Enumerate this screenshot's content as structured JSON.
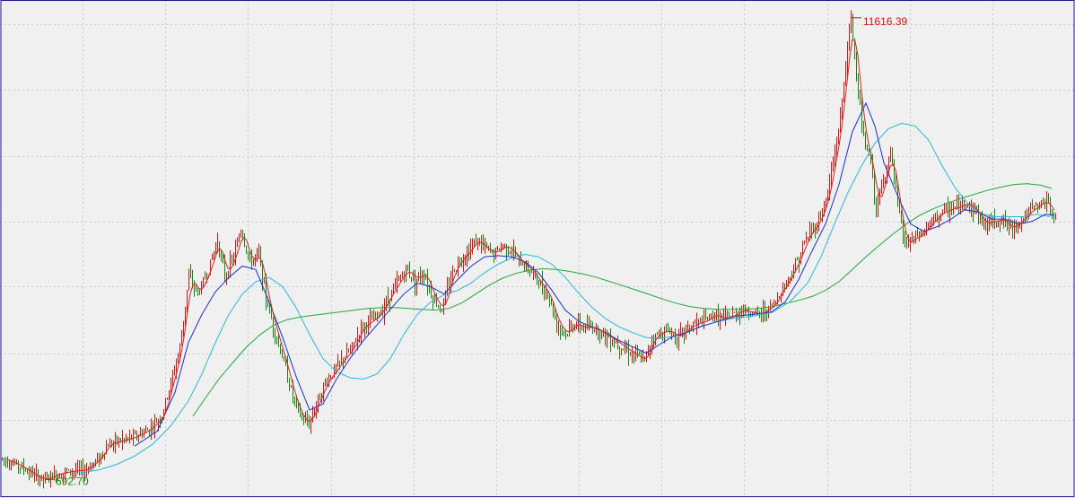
{
  "chart_data": {
    "type": "line",
    "subtype": "candlestick-with-moving-averages",
    "title": "",
    "xlabel": "",
    "ylabel": "",
    "grid": true,
    "y_scale": "log",
    "ylim": [
      640,
      12600
    ],
    "y_grid_values": [
      1000,
      1500,
      2250,
      3350,
      5000,
      7500,
      11200
    ],
    "x_grid_count": 13,
    "colors": {
      "background": "#f0f0f0",
      "up_candle": "#dd1111",
      "down_candle": "#118811",
      "ma_short": "#dd2222",
      "ma_mid": "#1a2fcc",
      "ma_long": "#27b8d6",
      "ma_longest": "#22a53a",
      "high_label": "#cc1111",
      "low_label": "#118811",
      "grid": "#c9c9c9",
      "axis": "#1c1c8a"
    },
    "price_path": [
      [
        0,
        790
      ],
      [
        10,
        775
      ],
      [
        25,
        745
      ],
      [
        40,
        705
      ],
      [
        50,
        692.7
      ],
      [
        65,
        720
      ],
      [
        80,
        730
      ],
      [
        95,
        735
      ],
      [
        110,
        790
      ],
      [
        120,
        860
      ],
      [
        135,
        880
      ],
      [
        150,
        900
      ],
      [
        165,
        940
      ],
      [
        180,
        1020
      ],
      [
        190,
        1250
      ],
      [
        200,
        1550
      ],
      [
        210,
        2400
      ],
      [
        220,
        2150
      ],
      [
        232,
        2500
      ],
      [
        242,
        3000
      ],
      [
        250,
        2400
      ],
      [
        260,
        2700
      ],
      [
        268,
        3200
      ],
      [
        278,
        2600
      ],
      [
        288,
        2750
      ],
      [
        296,
        2100
      ],
      [
        306,
        1700
      ],
      [
        316,
        1420
      ],
      [
        326,
        1150
      ],
      [
        336,
        1000
      ],
      [
        344,
        980
      ],
      [
        352,
        1100
      ],
      [
        362,
        1250
      ],
      [
        372,
        1350
      ],
      [
        382,
        1450
      ],
      [
        392,
        1550
      ],
      [
        402,
        1750
      ],
      [
        412,
        1820
      ],
      [
        422,
        1900
      ],
      [
        432,
        2100
      ],
      [
        442,
        2300
      ],
      [
        452,
        2500
      ],
      [
        462,
        2350
      ],
      [
        472,
        2450
      ],
      [
        482,
        2100
      ],
      [
        492,
        1950
      ],
      [
        502,
        2400
      ],
      [
        512,
        2650
      ],
      [
        522,
        2800
      ],
      [
        530,
        3000
      ],
      [
        540,
        2850
      ],
      [
        550,
        2750
      ],
      [
        560,
        2900
      ],
      [
        570,
        2800
      ],
      [
        580,
        2600
      ],
      [
        590,
        2500
      ],
      [
        600,
        2300
      ],
      [
        610,
        2150
      ],
      [
        620,
        1800
      ],
      [
        630,
        1680
      ],
      [
        640,
        1800
      ],
      [
        650,
        1750
      ],
      [
        660,
        1760
      ],
      [
        670,
        1700
      ],
      [
        680,
        1640
      ],
      [
        690,
        1580
      ],
      [
        700,
        1520
      ],
      [
        710,
        1470
      ],
      [
        718,
        1430
      ],
      [
        725,
        1620
      ],
      [
        735,
        1700
      ],
      [
        745,
        1720
      ],
      [
        755,
        1650
      ],
      [
        765,
        1740
      ],
      [
        775,
        1800
      ],
      [
        785,
        1820
      ],
      [
        795,
        1900
      ],
      [
        805,
        1850
      ],
      [
        815,
        1880
      ],
      [
        825,
        1950
      ],
      [
        835,
        1930
      ],
      [
        845,
        1900
      ],
      [
        855,
        1960
      ],
      [
        862,
        2020
      ],
      [
        870,
        2200
      ],
      [
        880,
        2400
      ],
      [
        890,
        2700
      ],
      [
        900,
        3100
      ],
      [
        910,
        3300
      ],
      [
        920,
        3800
      ],
      [
        928,
        4800
      ],
      [
        936,
        6300
      ],
      [
        942,
        8800
      ],
      [
        948,
        11616.39
      ],
      [
        954,
        8200
      ],
      [
        962,
        5500
      ],
      [
        970,
        4800
      ],
      [
        976,
        3600
      ],
      [
        984,
        4300
      ],
      [
        992,
        5100
      ],
      [
        1000,
        3700
      ],
      [
        1008,
        2900
      ],
      [
        1016,
        3000
      ],
      [
        1026,
        3100
      ],
      [
        1036,
        3300
      ],
      [
        1046,
        3500
      ],
      [
        1056,
        3600
      ],
      [
        1066,
        3650
      ],
      [
        1076,
        3750
      ],
      [
        1086,
        3600
      ],
      [
        1096,
        3300
      ],
      [
        1106,
        3350
      ],
      [
        1116,
        3400
      ],
      [
        1126,
        3200
      ],
      [
        1136,
        3350
      ],
      [
        1146,
        3550
      ],
      [
        1156,
        3700
      ],
      [
        1166,
        3800
      ],
      [
        1174,
        3450
      ]
    ],
    "moving_averages": {
      "ma_mid": [
        [
          150,
          850
        ],
        [
          175,
          930
        ],
        [
          195,
          1180
        ],
        [
          210,
          1600
        ],
        [
          225,
          1900
        ],
        [
          240,
          2180
        ],
        [
          255,
          2380
        ],
        [
          270,
          2550
        ],
        [
          285,
          2500
        ],
        [
          300,
          2050
        ],
        [
          315,
          1650
        ],
        [
          330,
          1300
        ],
        [
          345,
          1060
        ],
        [
          360,
          1100
        ],
        [
          375,
          1280
        ],
        [
          390,
          1450
        ],
        [
          405,
          1620
        ],
        [
          420,
          1780
        ],
        [
          435,
          1960
        ],
        [
          450,
          2150
        ],
        [
          465,
          2300
        ],
        [
          480,
          2250
        ],
        [
          495,
          2150
        ],
        [
          510,
          2350
        ],
        [
          525,
          2550
        ],
        [
          540,
          2700
        ],
        [
          555,
          2720
        ],
        [
          570,
          2700
        ],
        [
          585,
          2620
        ],
        [
          600,
          2450
        ],
        [
          615,
          2200
        ],
        [
          630,
          1950
        ],
        [
          645,
          1820
        ],
        [
          660,
          1760
        ],
        [
          675,
          1700
        ],
        [
          690,
          1620
        ],
        [
          705,
          1560
        ],
        [
          720,
          1500
        ],
        [
          735,
          1580
        ],
        [
          750,
          1660
        ],
        [
          765,
          1700
        ],
        [
          780,
          1760
        ],
        [
          800,
          1820
        ],
        [
          820,
          1880
        ],
        [
          840,
          1900
        ],
        [
          860,
          1930
        ],
        [
          875,
          2050
        ],
        [
          890,
          2350
        ],
        [
          905,
          2800
        ],
        [
          920,
          3300
        ],
        [
          935,
          4200
        ],
        [
          950,
          5800
        ],
        [
          965,
          6900
        ],
        [
          975,
          6000
        ],
        [
          985,
          4800
        ],
        [
          995,
          4200
        ],
        [
          1005,
          3700
        ],
        [
          1015,
          3300
        ],
        [
          1030,
          3150
        ],
        [
          1045,
          3250
        ],
        [
          1060,
          3400
        ],
        [
          1075,
          3600
        ],
        [
          1090,
          3550
        ],
        [
          1105,
          3400
        ],
        [
          1120,
          3400
        ],
        [
          1135,
          3300
        ],
        [
          1150,
          3350
        ],
        [
          1165,
          3500
        ],
        [
          1175,
          3480
        ]
      ],
      "ma_long": [
        [
          90,
          722
        ],
        [
          110,
          735
        ],
        [
          130,
          760
        ],
        [
          150,
          800
        ],
        [
          170,
          860
        ],
        [
          190,
          960
        ],
        [
          210,
          1120
        ],
        [
          225,
          1320
        ],
        [
          240,
          1600
        ],
        [
          255,
          1900
        ],
        [
          270,
          2150
        ],
        [
          285,
          2320
        ],
        [
          300,
          2380
        ],
        [
          315,
          2250
        ],
        [
          330,
          1980
        ],
        [
          345,
          1680
        ],
        [
          360,
          1450
        ],
        [
          375,
          1340
        ],
        [
          390,
          1290
        ],
        [
          405,
          1280
        ],
        [
          420,
          1320
        ],
        [
          435,
          1450
        ],
        [
          450,
          1680
        ],
        [
          465,
          1900
        ],
        [
          480,
          2050
        ],
        [
          495,
          2140
        ],
        [
          510,
          2200
        ],
        [
          525,
          2300
        ],
        [
          540,
          2450
        ],
        [
          555,
          2580
        ],
        [
          570,
          2680
        ],
        [
          585,
          2740
        ],
        [
          600,
          2700
        ],
        [
          615,
          2580
        ],
        [
          630,
          2380
        ],
        [
          645,
          2160
        ],
        [
          660,
          1980
        ],
        [
          675,
          1850
        ],
        [
          690,
          1760
        ],
        [
          705,
          1700
        ],
        [
          720,
          1650
        ],
        [
          735,
          1640
        ],
        [
          750,
          1660
        ],
        [
          765,
          1700
        ],
        [
          780,
          1760
        ],
        [
          800,
          1820
        ],
        [
          820,
          1860
        ],
        [
          840,
          1880
        ],
        [
          860,
          1920
        ],
        [
          880,
          2050
        ],
        [
          900,
          2300
        ],
        [
          915,
          2700
        ],
        [
          930,
          3300
        ],
        [
          945,
          4000
        ],
        [
          960,
          4700
        ],
        [
          975,
          5400
        ],
        [
          990,
          5900
        ],
        [
          1005,
          6100
        ],
        [
          1020,
          6000
        ],
        [
          1035,
          5500
        ],
        [
          1050,
          4700
        ],
        [
          1065,
          4100
        ],
        [
          1080,
          3700
        ],
        [
          1095,
          3500
        ],
        [
          1110,
          3450
        ],
        [
          1125,
          3450
        ],
        [
          1140,
          3450
        ],
        [
          1155,
          3500
        ],
        [
          1170,
          3450
        ]
      ],
      "ma_longest": [
        [
          215,
          1020
        ],
        [
          230,
          1150
        ],
        [
          245,
          1290
        ],
        [
          260,
          1420
        ],
        [
          275,
          1560
        ],
        [
          290,
          1680
        ],
        [
          305,
          1780
        ],
        [
          320,
          1840
        ],
        [
          335,
          1870
        ],
        [
          350,
          1890
        ],
        [
          365,
          1910
        ],
        [
          380,
          1930
        ],
        [
          395,
          1950
        ],
        [
          410,
          1970
        ],
        [
          425,
          1980
        ],
        [
          440,
          1980
        ],
        [
          455,
          1970
        ],
        [
          470,
          1960
        ],
        [
          485,
          1950
        ],
        [
          500,
          1970
        ],
        [
          515,
          2040
        ],
        [
          530,
          2150
        ],
        [
          545,
          2270
        ],
        [
          560,
          2370
        ],
        [
          575,
          2440
        ],
        [
          590,
          2490
        ],
        [
          605,
          2510
        ],
        [
          620,
          2500
        ],
        [
          635,
          2470
        ],
        [
          650,
          2430
        ],
        [
          665,
          2380
        ],
        [
          680,
          2320
        ],
        [
          695,
          2260
        ],
        [
          710,
          2200
        ],
        [
          725,
          2140
        ],
        [
          740,
          2080
        ],
        [
          755,
          2030
        ],
        [
          770,
          1990
        ],
        [
          785,
          1970
        ],
        [
          800,
          1960
        ],
        [
          815,
          1960
        ],
        [
          830,
          1960
        ],
        [
          845,
          1970
        ],
        [
          860,
          1990
        ],
        [
          875,
          2030
        ],
        [
          890,
          2070
        ],
        [
          905,
          2120
        ],
        [
          920,
          2200
        ],
        [
          935,
          2320
        ],
        [
          950,
          2500
        ],
        [
          965,
          2700
        ],
        [
          980,
          2900
        ],
        [
          995,
          3100
        ],
        [
          1010,
          3300
        ],
        [
          1025,
          3480
        ],
        [
          1040,
          3620
        ],
        [
          1055,
          3740
        ],
        [
          1070,
          3850
        ],
        [
          1085,
          3950
        ],
        [
          1100,
          4050
        ],
        [
          1115,
          4130
        ],
        [
          1130,
          4200
        ],
        [
          1145,
          4220
        ],
        [
          1160,
          4180
        ],
        [
          1172,
          4100
        ]
      ]
    },
    "annotations": {
      "high": {
        "value": 11616.39,
        "label": "11616.39",
        "x": 948
      },
      "low": {
        "value": 692.7,
        "label": "692.70",
        "x": 50
      }
    }
  }
}
